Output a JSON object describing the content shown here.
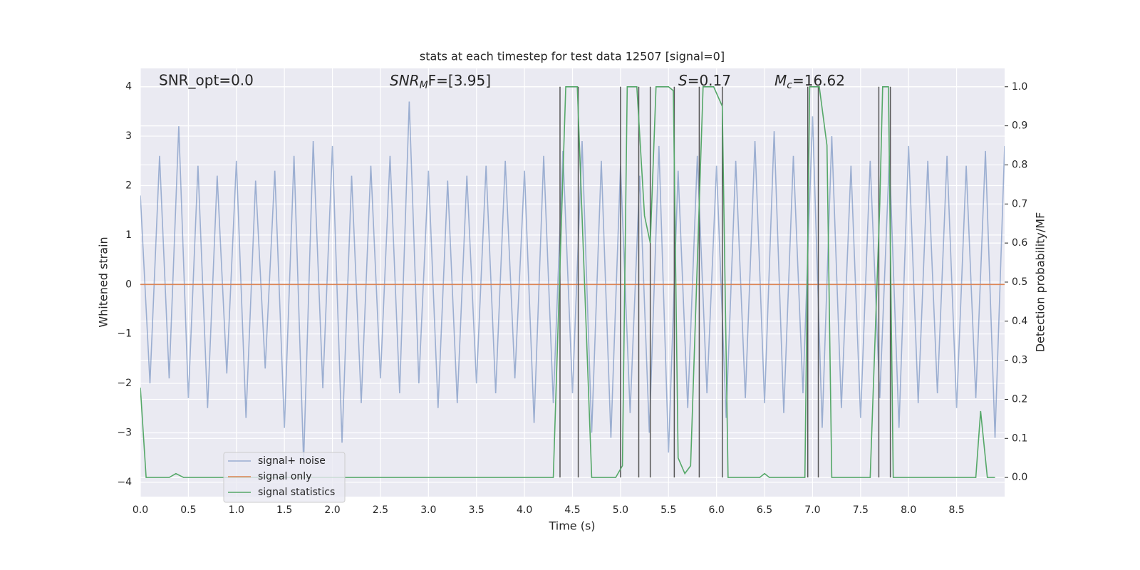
{
  "chart_data": {
    "type": "line",
    "title": "stats at each timestep for test data 12507 [signal=0]",
    "xlabel": "Time (s)",
    "ylabel": "Whitened strain",
    "y2label": "Detection probability/MF",
    "annotations": [
      {
        "text": "SNR_opt=0.0"
      },
      {
        "main": "SNR",
        "sub": "M",
        "rest": "F=[3.95]"
      },
      {
        "main": "S",
        "rest": "=0.17"
      },
      {
        "main": "M",
        "sub": "c",
        "rest": "=16.62"
      }
    ],
    "xlim": [
      0,
      9.0
    ],
    "ylim": [
      -4.29,
      4.37
    ],
    "y2lim": [
      -0.049,
      1.047
    ],
    "xticks": [
      {
        "value": 0,
        "label": "0.0"
      },
      {
        "value": 0.5,
        "label": "0.5"
      },
      {
        "value": 1,
        "label": "1.0"
      },
      {
        "value": 1.5,
        "label": "1.5"
      },
      {
        "value": 2,
        "label": "2.0"
      },
      {
        "value": 2.5,
        "label": "2.5"
      },
      {
        "value": 3,
        "label": "3.0"
      },
      {
        "value": 3.5,
        "label": "3.5"
      },
      {
        "value": 4,
        "label": "4.0"
      },
      {
        "value": 4.5,
        "label": "4.5"
      },
      {
        "value": 5,
        "label": "5.0"
      },
      {
        "value": 5.5,
        "label": "5.5"
      },
      {
        "value": 6,
        "label": "6.0"
      },
      {
        "value": 6.5,
        "label": "6.5"
      },
      {
        "value": 7,
        "label": "7.0"
      },
      {
        "value": 7.5,
        "label": "7.5"
      },
      {
        "value": 8,
        "label": "8.0"
      },
      {
        "value": 8.5,
        "label": "8.5"
      }
    ],
    "yticks": [
      {
        "value": -4,
        "label": "−4"
      },
      {
        "value": -3,
        "label": "−3"
      },
      {
        "value": -2,
        "label": "−2"
      },
      {
        "value": -1,
        "label": "−1"
      },
      0,
      1,
      2,
      3,
      4
    ],
    "y2ticks": [
      {
        "value": 0,
        "label": "0.0"
      },
      {
        "value": 0.1,
        "label": "0.1"
      },
      {
        "value": 0.2,
        "label": "0.2"
      },
      {
        "value": 0.3,
        "label": "0.3"
      },
      {
        "value": 0.4,
        "label": "0.4"
      },
      {
        "value": 0.5,
        "label": "0.5"
      },
      {
        "value": 0.6,
        "label": "0.6"
      },
      {
        "value": 0.7,
        "label": "0.7"
      },
      {
        "value": 0.8,
        "label": "0.8"
      },
      {
        "value": 0.9,
        "label": "0.9"
      },
      {
        "value": 1,
        "label": "1.0"
      }
    ],
    "grid": true,
    "legend": "lower left",
    "series": [
      {
        "name": "signal+ noise",
        "color": "#4c72b0",
        "opacity": 0.5,
        "x": [
          0,
          0.1,
          0.2,
          0.3,
          0.4,
          0.5,
          0.6,
          0.7,
          0.8,
          0.9,
          1,
          1.1,
          1.2,
          1.3,
          1.4,
          1.5,
          1.6,
          1.7,
          1.8,
          1.9,
          2,
          2.1,
          2.2,
          2.3,
          2.4,
          2.5,
          2.6,
          2.7,
          2.8,
          2.9,
          3,
          3.1,
          3.2,
          3.3,
          3.4,
          3.5,
          3.6,
          3.7,
          3.8,
          3.9,
          4,
          4.1,
          4.2,
          4.3,
          4.4,
          4.5,
          4.6,
          4.7,
          4.8,
          4.9,
          5,
          5.1,
          5.2,
          5.3,
          5.4,
          5.5,
          5.6,
          5.7,
          5.8,
          5.9,
          6,
          6.1,
          6.2,
          6.3,
          6.4,
          6.5,
          6.6,
          6.7,
          6.8,
          6.9,
          7,
          7.1,
          7.2,
          7.3,
          7.4,
          7.5,
          7.6,
          7.7,
          7.8,
          7.9,
          8,
          8.1,
          8.2,
          8.3,
          8.4,
          8.5,
          8.6,
          8.7,
          8.8,
          8.9,
          9.0
        ],
        "values": [
          1.8,
          -2.0,
          2.6,
          -1.9,
          3.2,
          -2.3,
          2.4,
          -2.5,
          2.2,
          -1.8,
          2.5,
          -2.7,
          2.1,
          -1.7,
          2.3,
          -2.9,
          2.6,
          -3.6,
          2.9,
          -2.1,
          2.8,
          -3.2,
          2.2,
          -2.4,
          2.4,
          -1.9,
          2.6,
          -2.2,
          3.7,
          -2.0,
          2.3,
          -2.5,
          2.1,
          -2.4,
          2.2,
          -2.0,
          2.4,
          -2.2,
          2.5,
          -1.9,
          2.3,
          -2.8,
          2.6,
          -2.4,
          2.7,
          -2.2,
          2.9,
          -3.0,
          2.5,
          -3.1,
          2.4,
          -2.6,
          2.2,
          -3.0,
          2.8,
          -3.4,
          2.3,
          -2.5,
          2.6,
          -2.2,
          2.4,
          -2.7,
          2.5,
          -2.3,
          2.9,
          -2.4,
          3.1,
          -2.6,
          2.6,
          -2.2,
          3.4,
          -2.9,
          3.0,
          -2.5,
          2.4,
          -2.7,
          2.5,
          -2.3,
          2.6,
          -2.9,
          2.8,
          -2.4,
          2.5,
          -2.2,
          2.6,
          -2.5,
          2.4,
          -2.3,
          2.7,
          -3.1,
          2.8
        ]
      },
      {
        "name": "signal only",
        "color": "#dd8452",
        "x": [
          0,
          9.0
        ],
        "values": [
          0,
          0
        ]
      },
      {
        "name": "signal statistics",
        "color": "#55a868",
        "axis": "y2",
        "x": [
          0,
          0.06,
          0.3,
          0.37,
          0.45,
          4.3,
          4.38,
          4.43,
          4.55,
          4.7,
          4.95,
          5.02,
          5.07,
          5.17,
          5.25,
          5.31,
          5.37,
          5.5,
          5.55,
          5.6,
          5.67,
          5.73,
          5.86,
          5.97,
          6.06,
          6.12,
          6.45,
          6.5,
          6.55,
          6.92,
          6.97,
          7.07,
          7.15,
          7.2,
          7.6,
          7.7,
          7.73,
          7.79,
          7.84,
          7.9,
          8.7,
          8.75,
          8.82,
          8.9
        ],
        "values": [
          0.23,
          0,
          0,
          0.01,
          0,
          0,
          0.62,
          1,
          1,
          0,
          0,
          0.03,
          1,
          1,
          0.67,
          0.6,
          1,
          1,
          0.99,
          0.05,
          0.01,
          0.03,
          1,
          1,
          0.95,
          0,
          0,
          0.01,
          0,
          0,
          1,
          1,
          0.85,
          0,
          0,
          0.7,
          1,
          1,
          0,
          0,
          0,
          0.17,
          0,
          0
        ]
      }
    ],
    "vlines": {
      "color": "#555555",
      "ymin": 0,
      "ymax": 1,
      "x": [
        4.37,
        4.56,
        5.0,
        5.19,
        5.31,
        5.56,
        5.82,
        6.06,
        6.95,
        7.06,
        7.69,
        7.81
      ]
    }
  }
}
